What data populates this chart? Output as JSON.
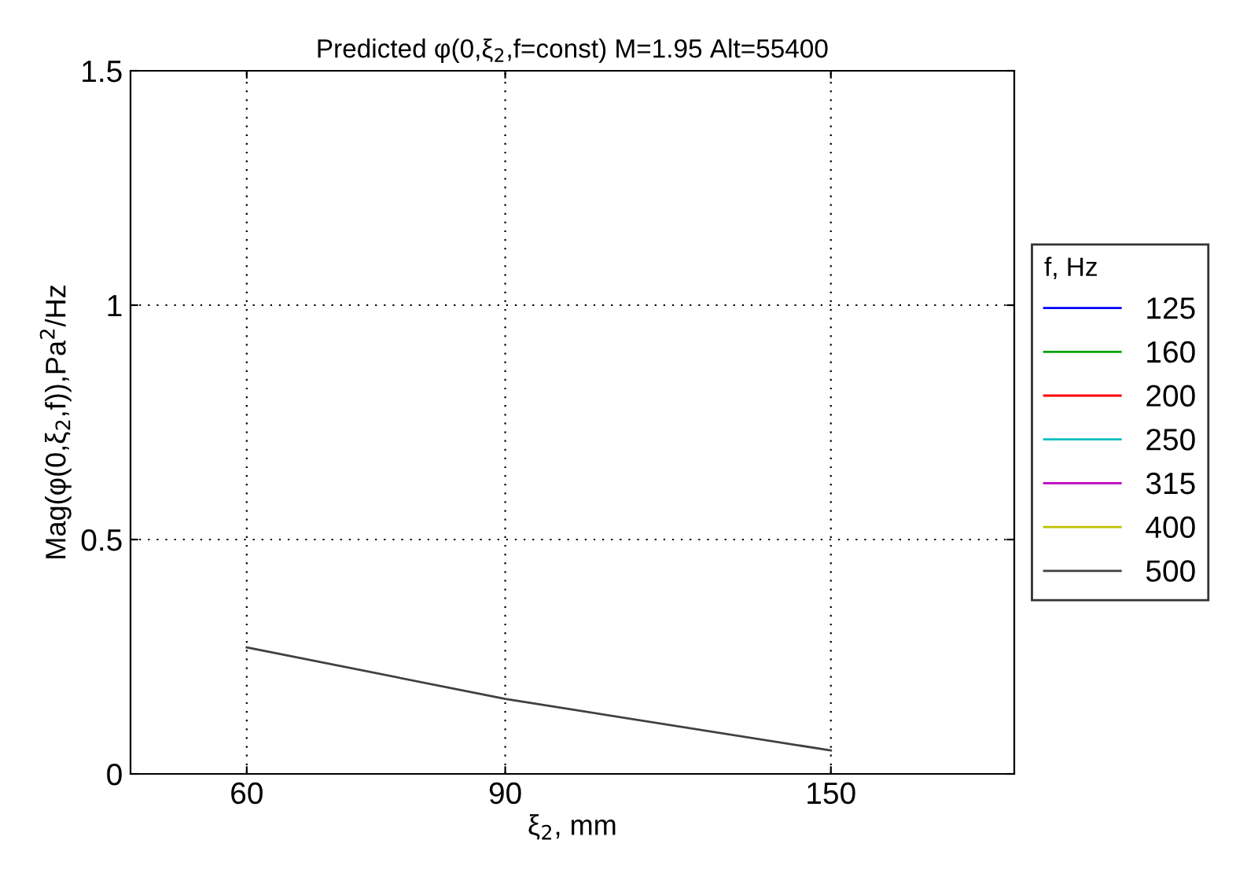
{
  "chart_data": {
    "type": "line",
    "title": "Predicted φ(0,ξ$_{2}$,f=const) M=1.95 Alt=55400",
    "xlabel": "ξ$_{2}$, mm",
    "ylabel": "Mag(φ(0,ξ$_{2}$,f)),Pa$^{2}$/Hz",
    "legend_title": "f, Hz",
    "x": [
      60,
      90,
      150
    ],
    "log": "x",
    "xlim": [
      50,
      200
    ],
    "xticks": [
      60,
      90,
      150
    ],
    "ylim": [
      0,
      1.5
    ],
    "yticks": [
      0,
      0.5,
      1,
      1.5
    ],
    "grid": true,
    "legend": "right",
    "line_style": "solid",
    "series": [
      {
        "name": "125",
        "color": "#0000ff",
        "values": [
          null,
          null,
          null
        ]
      },
      {
        "name": "160",
        "color": "#00a000",
        "values": [
          null,
          null,
          null
        ]
      },
      {
        "name": "200",
        "color": "#ff0000",
        "values": [
          null,
          null,
          null
        ]
      },
      {
        "name": "250",
        "color": "#00bfbf",
        "values": [
          null,
          null,
          null
        ]
      },
      {
        "name": "315",
        "color": "#bf00bf",
        "values": [
          null,
          null,
          null
        ]
      },
      {
        "name": "400",
        "color": "#bfbf00",
        "values": [
          null,
          null,
          null
        ]
      },
      {
        "name": "500",
        "color": "#404040",
        "values": [
          0.27,
          0.16,
          0.05
        ]
      }
    ]
  }
}
